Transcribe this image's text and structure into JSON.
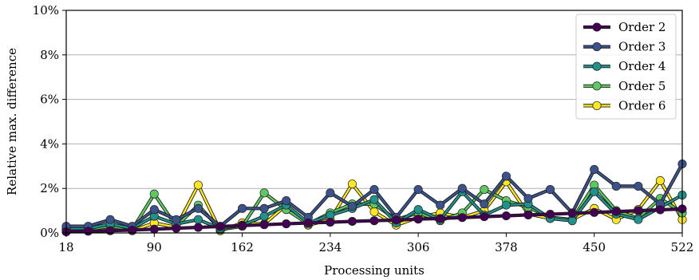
{
  "chart_data": {
    "type": "line",
    "xlabel": "Processing units",
    "ylabel": "Relative max. difference",
    "xlim": [
      18,
      522
    ],
    "ylim": [
      0,
      10
    ],
    "x_ticks": [
      "18",
      "90",
      "162",
      "234",
      "306",
      "378",
      "450",
      "522"
    ],
    "y_ticks": [
      "0%",
      "2%",
      "4%",
      "6%",
      "8%",
      "10%"
    ],
    "grid": "horizontal",
    "legend_position": "top-right",
    "x": [
      18,
      36,
      54,
      72,
      90,
      108,
      126,
      144,
      162,
      180,
      198,
      216,
      234,
      252,
      270,
      288,
      306,
      324,
      342,
      360,
      378,
      396,
      414,
      432,
      450,
      468,
      486,
      504,
      522
    ],
    "series": [
      {
        "name": "Order 2",
        "color": "#440154",
        "values": [
          0.05,
          0.08,
          0.1,
          0.13,
          0.17,
          0.21,
          0.25,
          0.29,
          0.33,
          0.37,
          0.41,
          0.45,
          0.48,
          0.52,
          0.55,
          0.58,
          0.62,
          0.65,
          0.69,
          0.73,
          0.77,
          0.81,
          0.84,
          0.88,
          0.92,
          0.96,
          1.0,
          1.04,
          1.08
        ]
      },
      {
        "name": "Order 3",
        "color": "#3b528b",
        "values": [
          0.3,
          0.3,
          0.6,
          0.3,
          1.05,
          0.6,
          1.1,
          0.3,
          1.1,
          1.1,
          1.45,
          0.7,
          1.8,
          1.2,
          1.95,
          0.7,
          1.95,
          1.25,
          2.0,
          1.3,
          2.55,
          1.55,
          1.95,
          0.9,
          2.85,
          2.1,
          2.1,
          1.3,
          3.1
        ]
      },
      {
        "name": "Order 4",
        "color": "#21918c",
        "values": [
          0.2,
          0.2,
          0.4,
          0.2,
          0.75,
          0.4,
          0.6,
          0.2,
          0.35,
          0.75,
          1.25,
          0.45,
          0.8,
          1.1,
          1.5,
          0.45,
          1.05,
          0.6,
          1.85,
          0.8,
          1.25,
          1.3,
          0.65,
          0.55,
          1.85,
          0.85,
          0.6,
          1.15,
          1.7
        ]
      },
      {
        "name": "Order 5",
        "color": "#5ec962",
        "values": [
          0.15,
          0.15,
          0.3,
          0.15,
          1.75,
          0.3,
          1.25,
          0.15,
          0.3,
          1.8,
          1.05,
          0.4,
          0.9,
          1.3,
          1.3,
          0.6,
          0.9,
          0.55,
          0.9,
          1.95,
          1.45,
          1.15,
          0.7,
          0.6,
          2.15,
          1.0,
          0.65,
          1.55,
          0.9
        ]
      },
      {
        "name": "Order 6",
        "color": "#fde725",
        "values": [
          0.1,
          0.1,
          0.25,
          0.1,
          0.45,
          0.25,
          2.15,
          0.1,
          0.45,
          0.4,
          1.25,
          0.35,
          0.6,
          2.2,
          0.95,
          0.35,
          0.7,
          0.9,
          0.7,
          1.0,
          2.3,
          0.85,
          0.65,
          0.6,
          1.1,
          0.6,
          1.05,
          2.35,
          0.6
        ]
      }
    ]
  }
}
